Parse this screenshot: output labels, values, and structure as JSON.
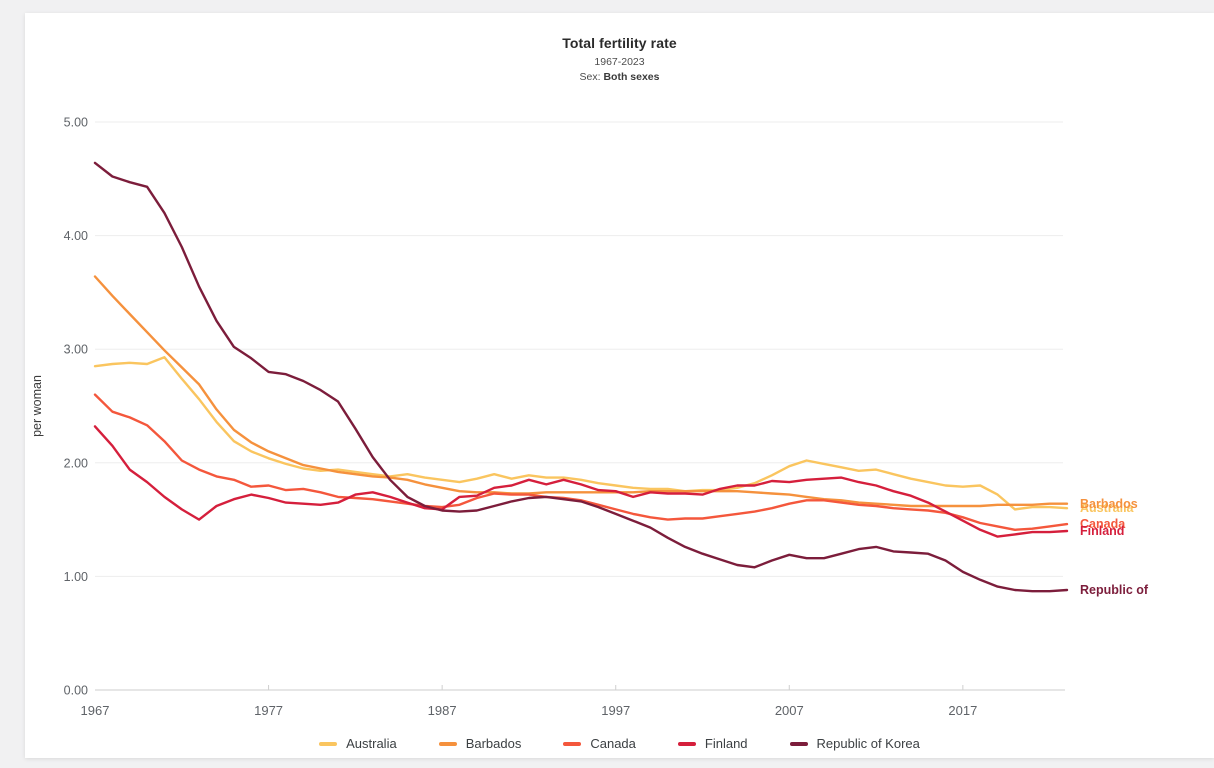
{
  "header": {
    "title": "Total fertility rate",
    "subtitle": "1967-2023",
    "sex_prefix": "Sex:",
    "sex_value": "Both sexes"
  },
  "chart_data": {
    "type": "line",
    "title": "Total fertility rate",
    "subtitle": "1967-2023",
    "sex": "Both sexes",
    "xlabel": "",
    "ylabel": "per woman",
    "ylim": [
      0,
      5
    ],
    "y_ticks": [
      "0.00",
      "1.00",
      "2.00",
      "3.00",
      "4.00",
      "5.00"
    ],
    "x_ticks": [
      1967,
      1977,
      1987,
      1997,
      2007,
      2017
    ],
    "x_range": [
      1967,
      2023
    ],
    "grid": "horizontal",
    "legend_position": "bottom",
    "colors": {
      "grid": "#ededed",
      "axis": "#d8d8d8",
      "tick_text": "#5f6368"
    },
    "series": [
      {
        "name": "Australia",
        "end_label": "Australia",
        "color": "#FAC55F",
        "values": [
          2.85,
          2.87,
          2.88,
          2.87,
          2.93,
          2.74,
          2.56,
          2.36,
          2.19,
          2.1,
          2.04,
          1.99,
          1.95,
          1.93,
          1.94,
          1.92,
          1.9,
          1.88,
          1.9,
          1.87,
          1.85,
          1.83,
          1.86,
          1.9,
          1.86,
          1.89,
          1.87,
          1.87,
          1.85,
          1.82,
          1.8,
          1.78,
          1.77,
          1.77,
          1.75,
          1.76,
          1.76,
          1.78,
          1.82,
          1.89,
          1.97,
          2.02,
          1.99,
          1.96,
          1.93,
          1.94,
          1.9,
          1.86,
          1.83,
          1.8,
          1.79,
          1.8,
          1.72,
          1.59,
          1.61,
          1.61,
          1.6
        ]
      },
      {
        "name": "Barbados",
        "end_label": "Barbados",
        "color": "#F5913D",
        "values": [
          3.64,
          3.47,
          3.31,
          3.15,
          2.99,
          2.84,
          2.69,
          2.47,
          2.29,
          2.18,
          2.1,
          2.04,
          1.98,
          1.95,
          1.92,
          1.9,
          1.88,
          1.87,
          1.85,
          1.81,
          1.78,
          1.75,
          1.74,
          1.74,
          1.73,
          1.73,
          1.74,
          1.74,
          1.74,
          1.74,
          1.74,
          1.74,
          1.75,
          1.75,
          1.75,
          1.75,
          1.75,
          1.75,
          1.74,
          1.73,
          1.72,
          1.7,
          1.68,
          1.67,
          1.65,
          1.64,
          1.63,
          1.62,
          1.62,
          1.62,
          1.62,
          1.62,
          1.63,
          1.63,
          1.63,
          1.64,
          1.64
        ]
      },
      {
        "name": "Canada",
        "end_label": "Canada",
        "color": "#F4573C",
        "values": [
          2.6,
          2.45,
          2.4,
          2.33,
          2.19,
          2.02,
          1.94,
          1.88,
          1.85,
          1.79,
          1.8,
          1.76,
          1.77,
          1.74,
          1.7,
          1.69,
          1.68,
          1.66,
          1.64,
          1.62,
          1.61,
          1.63,
          1.69,
          1.73,
          1.72,
          1.72,
          1.7,
          1.69,
          1.67,
          1.63,
          1.59,
          1.55,
          1.52,
          1.5,
          1.51,
          1.51,
          1.53,
          1.55,
          1.57,
          1.6,
          1.64,
          1.67,
          1.67,
          1.65,
          1.63,
          1.62,
          1.6,
          1.59,
          1.58,
          1.56,
          1.52,
          1.47,
          1.44,
          1.41,
          1.42,
          1.44,
          1.46
        ]
      },
      {
        "name": "Finland",
        "end_label": "Finland",
        "color": "#D51F3C",
        "values": [
          2.32,
          2.15,
          1.94,
          1.83,
          1.7,
          1.59,
          1.5,
          1.62,
          1.68,
          1.72,
          1.69,
          1.65,
          1.64,
          1.63,
          1.65,
          1.72,
          1.74,
          1.7,
          1.65,
          1.6,
          1.59,
          1.7,
          1.71,
          1.78,
          1.8,
          1.85,
          1.81,
          1.85,
          1.81,
          1.76,
          1.75,
          1.7,
          1.74,
          1.73,
          1.73,
          1.72,
          1.77,
          1.8,
          1.8,
          1.84,
          1.83,
          1.85,
          1.86,
          1.87,
          1.83,
          1.8,
          1.75,
          1.71,
          1.65,
          1.57,
          1.49,
          1.41,
          1.35,
          1.37,
          1.39,
          1.39,
          1.4
        ]
      },
      {
        "name": "Republic of Korea",
        "end_label": "Republic of",
        "color": "#7C1D3B",
        "values": [
          4.64,
          4.52,
          4.47,
          4.43,
          4.2,
          3.9,
          3.55,
          3.25,
          3.02,
          2.92,
          2.8,
          2.78,
          2.72,
          2.64,
          2.54,
          2.3,
          2.05,
          1.85,
          1.7,
          1.62,
          1.58,
          1.57,
          1.58,
          1.62,
          1.66,
          1.69,
          1.7,
          1.68,
          1.66,
          1.61,
          1.55,
          1.49,
          1.43,
          1.34,
          1.26,
          1.2,
          1.15,
          1.1,
          1.08,
          1.14,
          1.19,
          1.16,
          1.16,
          1.2,
          1.24,
          1.26,
          1.22,
          1.21,
          1.2,
          1.14,
          1.04,
          0.97,
          0.91,
          0.88,
          0.87,
          0.87,
          0.88
        ]
      }
    ]
  }
}
